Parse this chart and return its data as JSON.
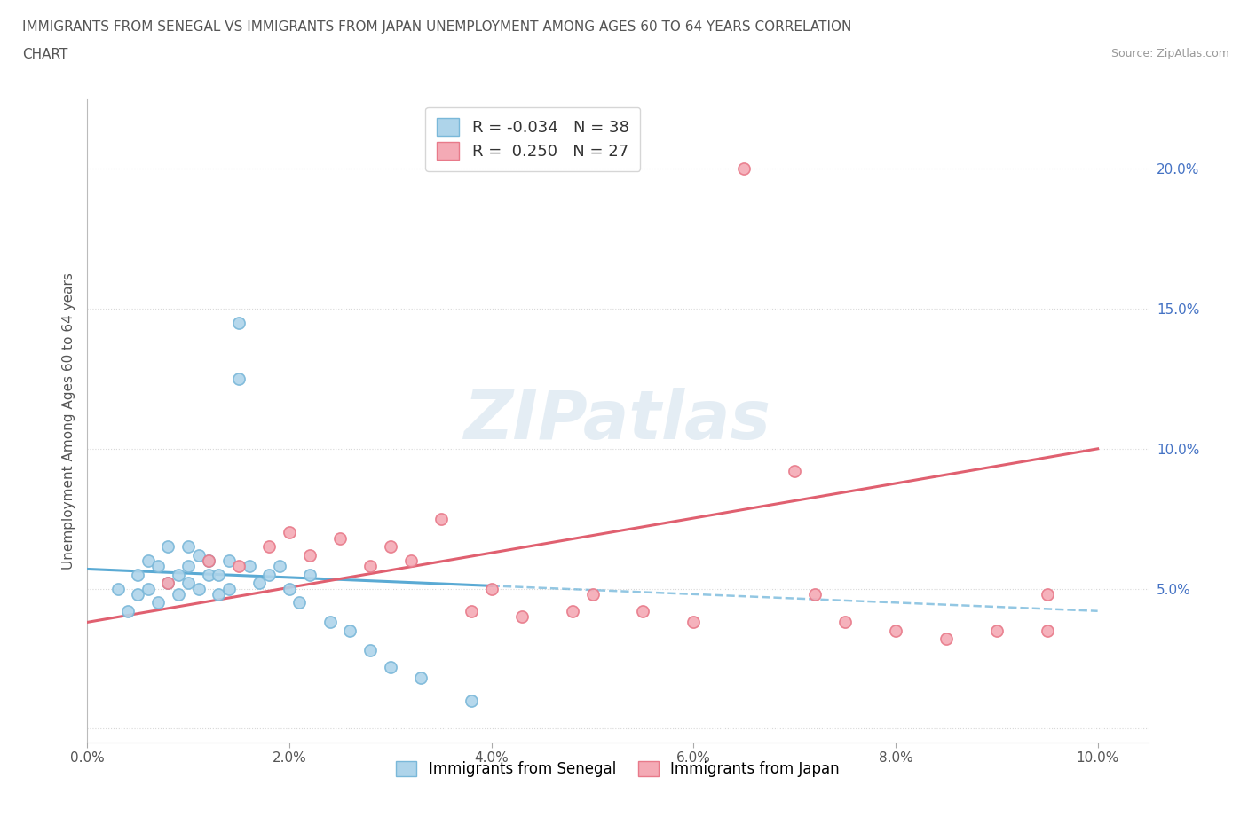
{
  "title_line1": "IMMIGRANTS FROM SENEGAL VS IMMIGRANTS FROM JAPAN UNEMPLOYMENT AMONG AGES 60 TO 64 YEARS CORRELATION",
  "title_line2": "CHART",
  "source": "Source: ZipAtlas.com",
  "ylabel": "Unemployment Among Ages 60 to 64 years",
  "senegal_color": "#7ab8d9",
  "senegal_color_fill": "#aed4ea",
  "japan_color": "#e87a8a",
  "japan_color_fill": "#f4aab5",
  "trend_senegal_color": "#5aaad4",
  "trend_japan_color": "#e06070",
  "R_senegal": -0.034,
  "N_senegal": 38,
  "R_japan": 0.25,
  "N_japan": 27,
  "xlim": [
    0.0,
    0.105
  ],
  "ylim": [
    -0.005,
    0.225
  ],
  "xticks": [
    0.0,
    0.02,
    0.04,
    0.06,
    0.08,
    0.1
  ],
  "yticks": [
    0.0,
    0.05,
    0.1,
    0.15,
    0.2
  ],
  "ytick_labels": [
    "",
    "5.0%",
    "10.0%",
    "15.0%",
    "20.0%"
  ],
  "xtick_labels": [
    "0.0%",
    "2.0%",
    "4.0%",
    "6.0%",
    "8.0%",
    "10.0%"
  ],
  "watermark": "ZIPatlas",
  "senegal_x": [
    0.003,
    0.004,
    0.005,
    0.005,
    0.006,
    0.006,
    0.007,
    0.007,
    0.008,
    0.008,
    0.009,
    0.009,
    0.01,
    0.01,
    0.01,
    0.011,
    0.011,
    0.012,
    0.012,
    0.013,
    0.013,
    0.014,
    0.014,
    0.015,
    0.015,
    0.016,
    0.017,
    0.018,
    0.019,
    0.02,
    0.021,
    0.022,
    0.024,
    0.026,
    0.028,
    0.03,
    0.033,
    0.038
  ],
  "senegal_y": [
    0.05,
    0.042,
    0.055,
    0.048,
    0.06,
    0.05,
    0.058,
    0.045,
    0.065,
    0.052,
    0.055,
    0.048,
    0.065,
    0.058,
    0.052,
    0.062,
    0.05,
    0.06,
    0.055,
    0.055,
    0.048,
    0.06,
    0.05,
    0.145,
    0.125,
    0.058,
    0.052,
    0.055,
    0.058,
    0.05,
    0.045,
    0.055,
    0.038,
    0.035,
    0.028,
    0.022,
    0.018,
    0.01
  ],
  "japan_x": [
    0.008,
    0.012,
    0.015,
    0.018,
    0.02,
    0.022,
    0.025,
    0.028,
    0.03,
    0.032,
    0.035,
    0.038,
    0.04,
    0.043,
    0.048,
    0.05,
    0.055,
    0.06,
    0.065,
    0.07,
    0.072,
    0.075,
    0.08,
    0.085,
    0.09,
    0.095,
    0.095
  ],
  "japan_y": [
    0.052,
    0.06,
    0.058,
    0.065,
    0.07,
    0.062,
    0.068,
    0.058,
    0.065,
    0.06,
    0.075,
    0.042,
    0.05,
    0.04,
    0.042,
    0.048,
    0.042,
    0.038,
    0.2,
    0.092,
    0.048,
    0.038,
    0.035,
    0.032,
    0.035,
    0.048,
    0.035
  ],
  "background_color": "#ffffff",
  "grid_color": "#d8d8d8",
  "trend_senegal_intercept": 0.057,
  "trend_senegal_slope": -0.15,
  "trend_japan_intercept": 0.038,
  "trend_japan_slope": 0.62
}
